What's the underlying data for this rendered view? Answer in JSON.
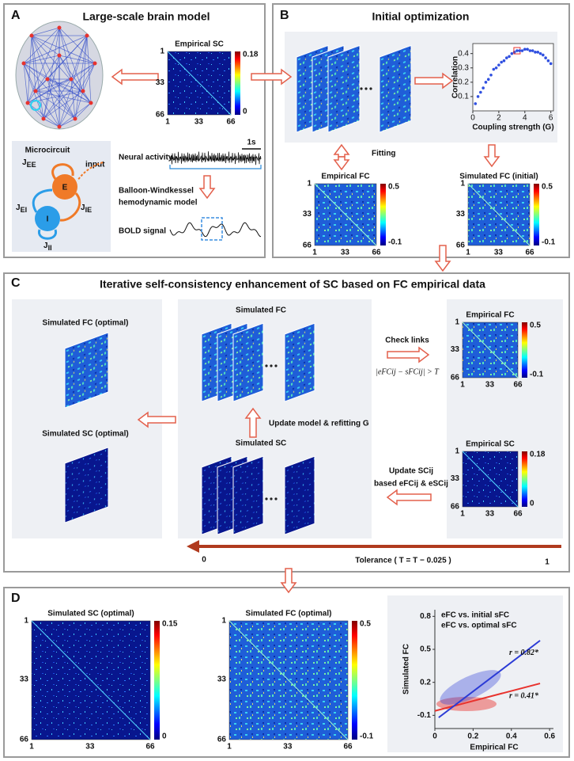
{
  "panel_a": {
    "label": "A",
    "title": "Large-scale brain model",
    "empirical_sc": {
      "title": "Empirical SC",
      "ticks": [
        1,
        33,
        66
      ],
      "colorbar": [
        0.18,
        0
      ]
    },
    "microcircuit": {
      "title": "Microcircuit",
      "input": "input",
      "e": "E",
      "i": "I",
      "j_ee": {
        "base": "J",
        "sub": "EE"
      },
      "j_ie": {
        "base": "J",
        "sub": "IE"
      },
      "j_ei": {
        "base": "J",
        "sub": "EI"
      },
      "j_ii": {
        "base": "J",
        "sub": "II"
      }
    },
    "neural_activity": "Neural activity",
    "time_scale": "1s",
    "hemodynamic": [
      "Balloon-Windkessel",
      "hemodynamic model"
    ],
    "bold": "BOLD signal"
  },
  "panel_b": {
    "label": "B",
    "title": "Initial optimization",
    "fitting": "Fitting",
    "empirical_fc": {
      "title": "Empirical FC",
      "ticks": [
        1,
        33,
        66
      ],
      "colorbar": [
        0.5,
        -0.1
      ]
    },
    "simulated_fc": {
      "title": "Simulated FC  (initial)",
      "ticks": [
        1,
        33,
        66
      ],
      "colorbar": [
        0.5,
        -0.1
      ]
    },
    "chart_data": {
      "type": "scatter",
      "xlabel": "Coupling strength (G)",
      "ylabel": "Correlation",
      "color": "#3050e0",
      "x": [
        0.2,
        0.4,
        0.6,
        0.8,
        1.0,
        1.2,
        1.4,
        1.6,
        1.8,
        2.0,
        2.2,
        2.4,
        2.6,
        2.8,
        3.0,
        3.2,
        3.4,
        3.6,
        3.8,
        4.0,
        4.2,
        4.4,
        4.6,
        4.8,
        5.0,
        5.2,
        5.4,
        5.6,
        5.8,
        6.0
      ],
      "values": [
        0.05,
        0.1,
        0.13,
        0.16,
        0.2,
        0.22,
        0.25,
        0.29,
        0.3,
        0.32,
        0.34,
        0.35,
        0.37,
        0.38,
        0.4,
        0.41,
        0.42,
        0.42,
        0.42,
        0.43,
        0.43,
        0.42,
        0.42,
        0.41,
        0.41,
        0.4,
        0.39,
        0.37,
        0.35,
        0.33
      ],
      "highlight_index": 16,
      "highlight_color": "#e8332e",
      "xlim": [
        0,
        6.2
      ],
      "ylim": [
        0,
        0.47
      ],
      "xticks": [
        0,
        2,
        4,
        6
      ],
      "yticks": [
        0.1,
        0.2,
        0.3,
        0.4
      ]
    }
  },
  "panel_c": {
    "label": "C",
    "title": "Iterative self-consistency enhancement of SC based on FC empirical data",
    "simulated_fc_optimal": "Simulated FC (optimal)",
    "simulated_sc_optimal": "Simulated SC (optimal)",
    "simulated_fc": "Simulated FC",
    "update_model": "Update model & refitting G",
    "simulated_sc": "Simulated SC",
    "check_links": "Check links",
    "criterion": "|eFCij − sFCij| > T",
    "update_sc": [
      "Update SCij",
      "based eFCij & eSCij"
    ],
    "empirical_fc": {
      "title": "Empirical FC",
      "ticks": [
        1,
        33,
        66
      ],
      "colorbar": [
        0.5,
        -0.1
      ]
    },
    "empirical_sc": {
      "title": "Empirical SC",
      "ticks": [
        1,
        33,
        66
      ],
      "colorbar": [
        0.18,
        0
      ]
    },
    "tolerance": {
      "start": 0,
      "label": "Tolerance ( T = T − 0.025 )",
      "end": 1
    }
  },
  "panel_d": {
    "label": "D",
    "simulated_sc": {
      "title": "Simulated SC (optimal)",
      "ticks": [
        1,
        33,
        66
      ],
      "colorbar": [
        0.15,
        0
      ]
    },
    "simulated_fc": {
      "title": "Simulated FC (optimal)",
      "ticks": [
        1,
        33,
        66
      ],
      "colorbar": [
        0.5,
        -0.1
      ]
    },
    "chart_data": {
      "type": "line",
      "xlabel": "Empirical FC",
      "ylabel": "Simulated FC",
      "series": [
        {
          "name": "eFC vs. initial sFC",
          "color": "#e8332e",
          "x": [
            0,
            0.55
          ],
          "values": [
            -0.06,
            0.19
          ],
          "label": "r = 0.41*"
        },
        {
          "name": "eFC vs. optimal sFC",
          "color": "#2b3bd6",
          "x": [
            0.02,
            0.55
          ],
          "values": [
            -0.12,
            0.58
          ],
          "label": "r = 0.82*"
        }
      ],
      "xlim": [
        0,
        0.62
      ],
      "ylim": [
        -0.22,
        0.86
      ],
      "xticks": [
        0,
        0.2,
        0.4,
        0.6
      ],
      "yticks": [
        -0.1,
        0.2,
        0.5,
        0.8
      ]
    }
  }
}
